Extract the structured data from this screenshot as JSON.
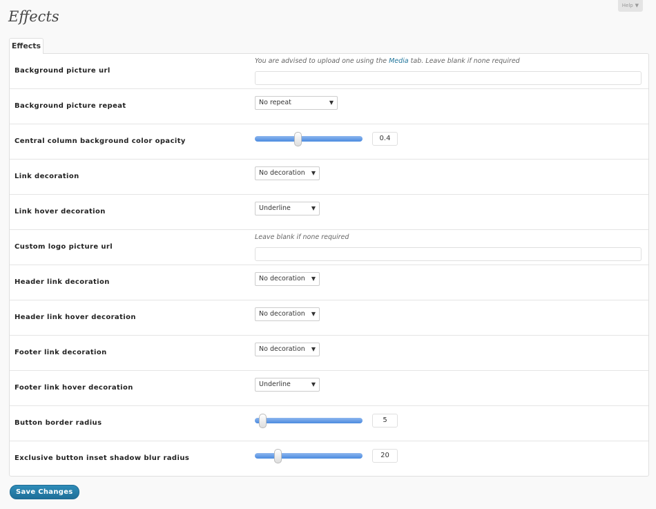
{
  "help": {
    "label": "Help",
    "arrow": "▼"
  },
  "page_title": "Effects",
  "tab": "Effects",
  "rows": [
    {
      "label": "Background picture url",
      "type": "text",
      "note_before": "You are advised to upload one using the ",
      "note_link": "Media",
      "note_after": " tab. Leave blank if none required",
      "value": ""
    },
    {
      "label": "Background picture repeat",
      "type": "select",
      "value": "No repeat"
    },
    {
      "label": "Central column background color opacity",
      "type": "slider",
      "value": "0.4",
      "fraction": 0.4
    },
    {
      "label": "Link decoration",
      "type": "select",
      "value": "No decoration"
    },
    {
      "label": "Link hover decoration",
      "type": "select",
      "value": "Underline"
    },
    {
      "label": "Custom logo picture url",
      "type": "text",
      "note_before": "Leave blank if none required",
      "value": ""
    },
    {
      "label": "Header link decoration",
      "type": "select",
      "value": "No decoration"
    },
    {
      "label": "Header link hover decoration",
      "type": "select",
      "value": "No decoration"
    },
    {
      "label": "Footer link decoration",
      "type": "select",
      "value": "No decoration"
    },
    {
      "label": "Footer link hover decoration",
      "type": "select",
      "value": "Underline"
    },
    {
      "label": "Button border radius",
      "type": "slider",
      "value": "5",
      "fraction": 0.07
    },
    {
      "label": "Exclusive button inset shadow blur radius",
      "type": "slider",
      "value": "20",
      "fraction": 0.21
    }
  ],
  "save_label": "Save Changes",
  "colors": {
    "accent": "#21759b",
    "slider": "#4b8be0"
  }
}
